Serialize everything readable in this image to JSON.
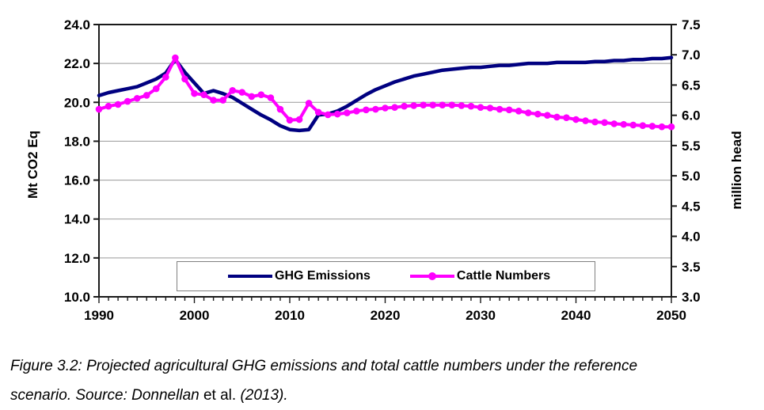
{
  "figure": {
    "caption": {
      "line1": "Figure 3.2: Projected agricultural GHG emissions and total cattle numbers under the reference",
      "line2_italic1": "scenario. Source: Donnellan ",
      "line2_roman": "et al.",
      "line2_italic2": " (2013)."
    }
  },
  "chart_data": {
    "type": "line",
    "title": "",
    "grid": "horizontal",
    "background": "#ffffff",
    "x_axis": {
      "min": 1990,
      "max": 2050,
      "step": 1,
      "tick_labels": [
        "1990",
        "2000",
        "2010",
        "2020",
        "2030",
        "2040",
        "2050"
      ],
      "minor_tick_step": 1
    },
    "left_axis": {
      "label": "Mt CO2 Eq",
      "min": 10.0,
      "max": 24.0,
      "ticks": [
        "10.0",
        "12.0",
        "14.0",
        "16.0",
        "18.0",
        "20.0",
        "22.0",
        "24.0"
      ]
    },
    "right_axis": {
      "label": "million head",
      "min": 3.0,
      "max": 7.5,
      "ticks": [
        "3.0",
        "3.5",
        "4.0",
        "4.5",
        "5.0",
        "5.5",
        "6.0",
        "6.5",
        "7.0",
        "7.5"
      ]
    },
    "legend": {
      "position": "bottom-center",
      "border_color": "#808080"
    },
    "series": [
      {
        "name": "GHG Emissions",
        "axis": "left",
        "unit": "Mt CO2 Eq",
        "color": "#000080",
        "line_width": 4.5,
        "marker": "none",
        "x_start": 1990,
        "x_step": 1,
        "values": [
          20.35,
          20.5,
          20.6,
          20.7,
          20.8,
          21.0,
          21.2,
          21.5,
          22.2,
          21.55,
          21.0,
          20.45,
          20.6,
          20.45,
          20.25,
          19.95,
          19.65,
          19.35,
          19.1,
          18.8,
          18.6,
          18.55,
          18.6,
          19.35,
          19.4,
          19.55,
          19.8,
          20.1,
          20.4,
          20.65,
          20.85,
          21.05,
          21.2,
          21.35,
          21.45,
          21.55,
          21.65,
          21.7,
          21.75,
          21.8,
          21.8,
          21.85,
          21.9,
          21.9,
          21.95,
          22.0,
          22.0,
          22.0,
          22.05,
          22.05,
          22.05,
          22.05,
          22.1,
          22.1,
          22.15,
          22.15,
          22.2,
          22.2,
          22.25,
          22.25,
          22.3
        ]
      },
      {
        "name": "Cattle Numbers",
        "axis": "right",
        "unit": "million head",
        "color": "#FF00FF",
        "line_width": 4,
        "marker": "circle",
        "x_start": 1990,
        "x_step": 1,
        "values": [
          6.1,
          6.15,
          6.18,
          6.23,
          6.28,
          6.33,
          6.44,
          6.63,
          6.95,
          6.6,
          6.36,
          6.34,
          6.25,
          6.25,
          6.41,
          6.38,
          6.31,
          6.34,
          6.29,
          6.1,
          5.92,
          5.93,
          6.2,
          6.05,
          6.01,
          6.02,
          6.04,
          6.07,
          6.09,
          6.1,
          6.12,
          6.13,
          6.15,
          6.16,
          6.17,
          6.17,
          6.17,
          6.17,
          6.16,
          6.15,
          6.13,
          6.12,
          6.1,
          6.09,
          6.07,
          6.04,
          6.02,
          6.0,
          5.97,
          5.96,
          5.93,
          5.91,
          5.89,
          5.88,
          5.86,
          5.85,
          5.84,
          5.83,
          5.82,
          5.81,
          5.81
        ]
      }
    ]
  }
}
